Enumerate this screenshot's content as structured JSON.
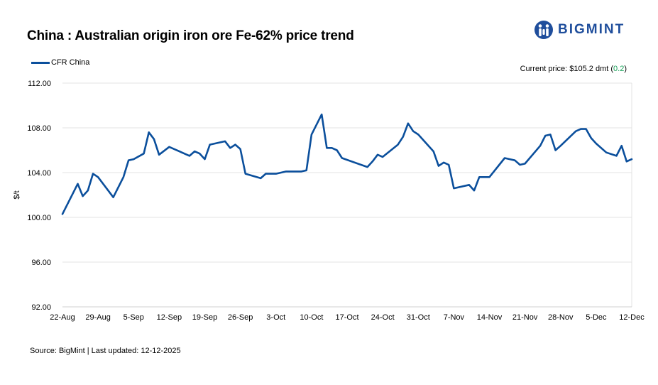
{
  "title": "China : Australian origin iron ore Fe-62% price trend",
  "brand": {
    "name": "BIGMINT",
    "color": "#1f4e9c",
    "icon": "bigmint-people-logo-icon"
  },
  "current_price": {
    "label": "Current price: $105.2 dmt (",
    "change": "0.2",
    "suffix": ")",
    "change_color": "#18a058"
  },
  "source": "Source: BigMint | Last updated: 12-12-2025",
  "chart_data": {
    "type": "line",
    "title": "China : Australian origin iron ore Fe-62% price trend",
    "ylabel": "$/t",
    "xlabel": "",
    "ylim": [
      92,
      112
    ],
    "yticks": [
      "92.00",
      "96.00",
      "100.00",
      "104.00",
      "108.00",
      "112.00"
    ],
    "ytick_values": [
      92,
      96,
      100,
      104,
      108,
      112
    ],
    "xlim": [
      0,
      112
    ],
    "xticks": [
      "22-Aug",
      "29-Aug",
      "5-Sep",
      "12-Sep",
      "19-Sep",
      "26-Sep",
      "3-Oct",
      "10-Oct",
      "17-Oct",
      "24-Oct",
      "31-Oct",
      "7-Nov",
      "14-Nov",
      "21-Nov",
      "28-Nov",
      "5-Dec",
      "12-Dec"
    ],
    "xtick_values": [
      0,
      7,
      14,
      21,
      28,
      35,
      42,
      49,
      56,
      63,
      70,
      77,
      84,
      91,
      98,
      105,
      112
    ],
    "grid": true,
    "legend_position": "top-left",
    "series": [
      {
        "name": "CFR China",
        "color": "#0b4f9c",
        "x": [
          0,
          3,
          4,
          5,
          6,
          7,
          10,
          12,
          13,
          14,
          16,
          17,
          18,
          19,
          21,
          22,
          25,
          26,
          27,
          28,
          29,
          32,
          33,
          34,
          35,
          36,
          39,
          40,
          42,
          43,
          44,
          46,
          47,
          48,
          49,
          51,
          52,
          53,
          54,
          55,
          60,
          61,
          62,
          63,
          66,
          67,
          68,
          69,
          70,
          73,
          74,
          75,
          76,
          77,
          80,
          81,
          82,
          83,
          84,
          87,
          88,
          89,
          90,
          91,
          94,
          95,
          96,
          97,
          98,
          101,
          102,
          103,
          104,
          105,
          107,
          109,
          110,
          111,
          112
        ],
        "y": [
          100.3,
          103.0,
          101.9,
          102.4,
          103.9,
          103.6,
          101.8,
          103.6,
          105.1,
          105.2,
          105.7,
          107.6,
          107.0,
          105.6,
          106.3,
          106.1,
          105.5,
          105.9,
          105.7,
          105.2,
          106.5,
          106.8,
          106.2,
          106.5,
          106.1,
          103.9,
          103.5,
          103.9,
          103.9,
          104.0,
          104.1,
          104.1,
          104.1,
          104.2,
          107.4,
          109.2,
          106.2,
          106.2,
          106.0,
          105.3,
          104.5,
          105.0,
          105.6,
          105.4,
          106.5,
          107.2,
          108.4,
          107.7,
          107.4,
          105.9,
          104.6,
          104.9,
          104.7,
          102.6,
          102.9,
          102.4,
          103.6,
          103.6,
          103.6,
          105.3,
          105.2,
          105.1,
          104.7,
          104.8,
          106.4,
          107.3,
          107.4,
          106.0,
          106.4,
          107.7,
          107.9,
          107.9,
          107.1,
          106.6,
          105.8,
          105.5,
          106.4,
          105.0,
          105.2
        ]
      }
    ]
  }
}
